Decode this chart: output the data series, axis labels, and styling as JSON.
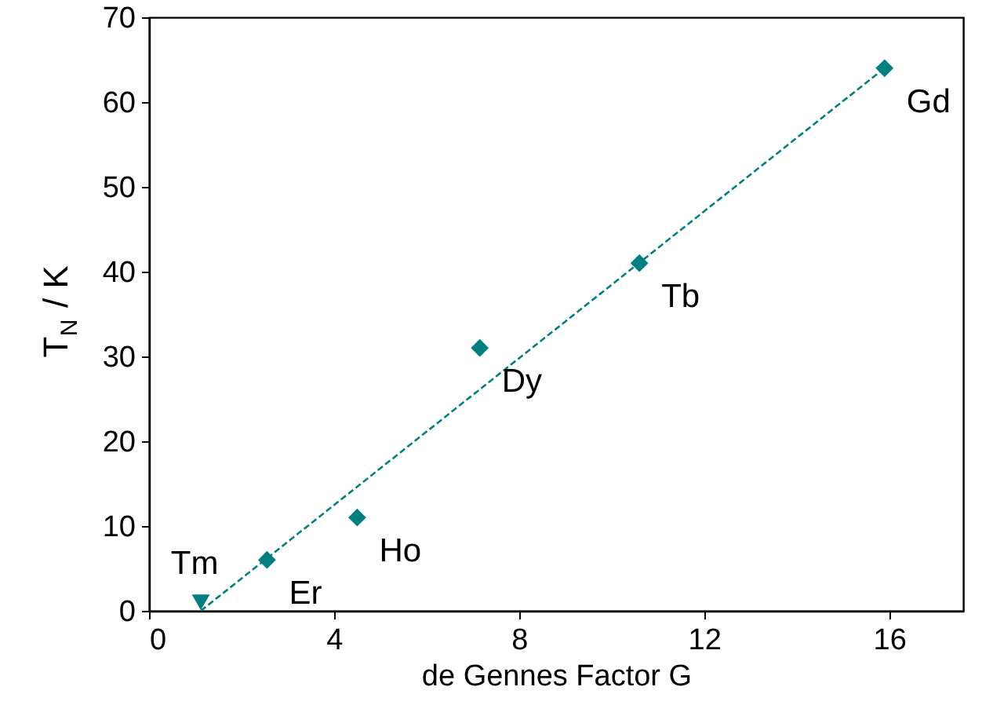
{
  "chart_data": {
    "type": "scatter",
    "xlabel": "de Gennes Factor G",
    "ylabel": "T$_{N}$ / K",
    "xlim": [
      0,
      17.6
    ],
    "xticks": [
      0,
      4,
      8,
      12,
      16
    ],
    "ylim": [
      0,
      70
    ],
    "yticks": [
      0,
      10,
      20,
      30,
      40,
      50,
      60,
      70
    ],
    "grid": false,
    "series": [
      {
        "type": "line",
        "line_style": "dashed",
        "color": "#008080",
        "x": [
          1.12,
          15.9
        ],
        "values": [
          0,
          64
        ]
      },
      {
        "marker": "diamond",
        "color": "#008080",
        "x": [
          15.9,
          10.6,
          7.15,
          4.5,
          2.55
        ],
        "values": [
          64,
          41,
          31,
          11,
          6
        ]
      },
      {
        "marker": "triangle",
        "color": "#008080",
        "x": [
          1.12
        ],
        "values": [
          1
        ]
      }
    ],
    "annotations": [
      {
        "text": "Gd",
        "x": 15.9,
        "y": 64
      },
      {
        "text": "Tb",
        "x": 10.6,
        "y": 41
      },
      {
        "text": "Dy",
        "x": 7.15,
        "y": 31
      },
      {
        "text": "Ho",
        "x": 4.5,
        "y": 11
      },
      {
        "text": "Er",
        "x": 2.55,
        "y": 6
      },
      {
        "text": "Tm",
        "x": 1.12,
        "y": 1
      }
    ]
  }
}
